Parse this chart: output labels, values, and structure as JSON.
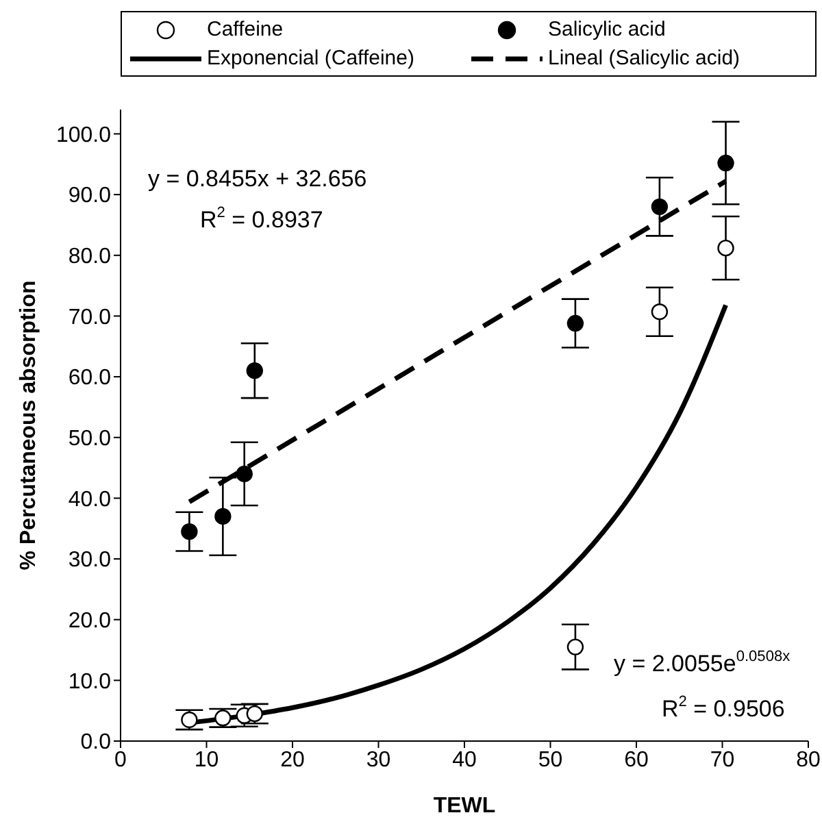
{
  "chart_data": {
    "type": "scatter",
    "xlabel": "TEWL",
    "ylabel": "% Percutaneous absorption",
    "xlim": [
      0,
      80
    ],
    "xticks": [
      0,
      10,
      20,
      30,
      40,
      50,
      60,
      70,
      80
    ],
    "ylim": [
      0,
      104
    ],
    "yticks": [
      {
        "value": 0,
        "label": "0.0"
      },
      {
        "value": 10,
        "label": "10.0"
      },
      {
        "value": 20,
        "label": "20.0"
      },
      {
        "value": 30,
        "label": "30.0"
      },
      {
        "value": 40,
        "label": "40.0"
      },
      {
        "value": 50,
        "label": "50.0"
      },
      {
        "value": 60,
        "label": "60.0"
      },
      {
        "value": 70,
        "label": "70.0"
      },
      {
        "value": 80,
        "label": "80.0"
      },
      {
        "value": 90,
        "label": "90.0"
      },
      {
        "value": 100,
        "label": "100.0"
      }
    ],
    "grid": false,
    "legend": "top",
    "series": [
      {
        "name": "Caffeine",
        "color": "#ffffff",
        "marker": "circle",
        "x": [
          8,
          11.9,
          14.4,
          15.6,
          52.9,
          62.7,
          70.4
        ],
        "values": [
          3.5,
          3.8,
          4.2,
          4.5,
          15.5,
          70.7,
          81.2
        ],
        "errors": [
          1.6,
          1.5,
          1.8,
          1.6,
          3.7,
          4,
          5.2
        ]
      },
      {
        "name": "Salicylic acid",
        "color": "#000000",
        "marker": "circle",
        "x": [
          8,
          11.9,
          14.4,
          15.6,
          52.9,
          62.7,
          70.4
        ],
        "values": [
          34.5,
          37,
          44,
          61,
          68.8,
          88,
          95.2
        ],
        "errors": [
          3.2,
          6.4,
          5.2,
          4.5,
          4,
          4.8,
          6.8
        ]
      },
      {
        "name": "Exponencial (Caffeine)",
        "type": "line",
        "color": "#000000",
        "marker": "none",
        "line_style": "solid",
        "x": [
          8,
          15,
          20,
          25,
          30,
          35,
          40,
          45,
          50,
          55,
          60,
          65,
          70.4
        ],
        "values": [
          3.0,
          4.3,
          5.5,
          7.1,
          9.2,
          11.8,
          15.2,
          19.6,
          25.2,
          32.5,
          41.8,
          53.9,
          71.8
        ]
      },
      {
        "name": "Lineal (Salicylic acid)",
        "type": "line",
        "color": "#000000",
        "marker": "none",
        "line_style": "dashed",
        "x": [
          8,
          70.4
        ],
        "values": [
          39.4,
          92.2
        ]
      }
    ],
    "annotations": [
      "y = 0.8455x + 32.656",
      "R$^{2}$ = 0.8937",
      "y = 2.0055e$^{0.0508x}$",
      "R$^{2}$ = 0.9506"
    ]
  }
}
